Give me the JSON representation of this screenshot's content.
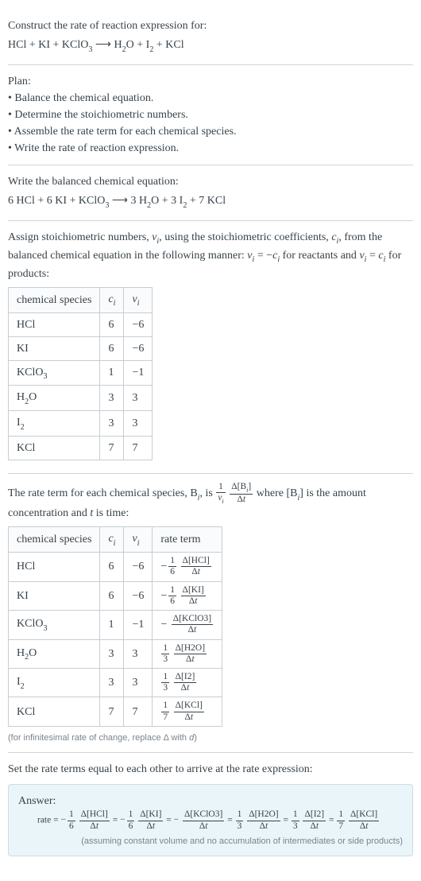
{
  "sec1": {
    "title": "Construct the rate of reaction expression for:",
    "eqn": "HCl + KI + KClO<sub class='sub'>3</sub>&nbsp;<span class='arrow'>⟶</span>&nbsp;H<sub class='sub'>2</sub>O + I<sub class='sub'>2</sub> + KCl"
  },
  "sec2": {
    "title": "Plan:",
    "bullets": [
      "Balance the chemical equation.",
      "Determine the stoichiometric numbers.",
      "Assemble the rate term for each chemical species.",
      "Write the rate of reaction expression."
    ]
  },
  "sec3": {
    "title": "Write the balanced chemical equation:",
    "eqn": "6 HCl + 6 KI + KClO<sub class='sub'>3</sub>&nbsp;<span class='arrow'>⟶</span>&nbsp;3 H<sub class='sub'>2</sub>O + 3 I<sub class='sub'>2</sub> + 7 KCl"
  },
  "sec4": {
    "intro": "Assign stoichiometric numbers, <span class='ital'>ν<sub class='sub'>i</sub></span>, using the stoichiometric coefficients, <span class='ital'>c<sub class='sub'>i</sub></span>, from the balanced chemical equation in the following manner: <span class='ital'>ν<sub class='sub'>i</sub></span> = −<span class='ital'>c<sub class='sub'>i</sub></span> for reactants and <span class='ital'>ν<sub class='sub'>i</sub></span> = <span class='ital'>c<sub class='sub'>i</sub></span> for products:",
    "headers": [
      "chemical species",
      "<span class='ital'>c<sub class='sub'>i</sub></span>",
      "<span class='ital'>ν<sub class='sub'>i</sub></span>"
    ],
    "rows": [
      [
        "HCl",
        "6",
        "−6"
      ],
      [
        "KI",
        "6",
        "−6"
      ],
      [
        "KClO<sub class='sub'>3</sub>",
        "1",
        "−1"
      ],
      [
        "H<sub class='sub'>2</sub>O",
        "3",
        "3"
      ],
      [
        "I<sub class='sub'>2</sub>",
        "3",
        "3"
      ],
      [
        "KCl",
        "7",
        "7"
      ]
    ]
  },
  "sec5": {
    "intro_pre": "The rate term for each chemical species, B<sub class='sub'><span class='ital'>i</span></sub>, is ",
    "intro_post": " where [B<sub class='sub'><span class='ital'>i</span></sub>] is the amount concentration and <span class='ital'>t</span> is time:",
    "headers": [
      "chemical species",
      "<span class='ital'>c<sub class='sub'>i</sub></span>",
      "<span class='ital'>ν<sub class='sub'>i</sub></span>",
      "rate term"
    ],
    "rows": [
      {
        "sp": "HCl",
        "c": "6",
        "v": "−6",
        "neg": true,
        "fnum": "1",
        "fden": "6",
        "dnum": "Δ[HCl]",
        "dden": "Δ<span class='ital'>t</span>"
      },
      {
        "sp": "KI",
        "c": "6",
        "v": "−6",
        "neg": true,
        "fnum": "1",
        "fden": "6",
        "dnum": "Δ[KI]",
        "dden": "Δ<span class='ital'>t</span>"
      },
      {
        "sp": "KClO<sub class='sub'>3</sub>",
        "c": "1",
        "v": "−1",
        "neg": true,
        "fnum": "",
        "fden": "",
        "dnum": "Δ[KClO3]",
        "dden": "Δ<span class='ital'>t</span>"
      },
      {
        "sp": "H<sub class='sub'>2</sub>O",
        "c": "3",
        "v": "3",
        "neg": false,
        "fnum": "1",
        "fden": "3",
        "dnum": "Δ[H2O]",
        "dden": "Δ<span class='ital'>t</span>"
      },
      {
        "sp": "I<sub class='sub'>2</sub>",
        "c": "3",
        "v": "3",
        "neg": false,
        "fnum": "1",
        "fden": "3",
        "dnum": "Δ[I2]",
        "dden": "Δ<span class='ital'>t</span>"
      },
      {
        "sp": "KCl",
        "c": "7",
        "v": "7",
        "neg": false,
        "fnum": "1",
        "fden": "7",
        "dnum": "Δ[KCl]",
        "dden": "Δ<span class='ital'>t</span>"
      }
    ],
    "note": "(for infinitesimal rate of change, replace Δ with <span class='ital'>d</span>)"
  },
  "sec6": {
    "title": "Set the rate terms equal to each other to arrive at the rate expression:",
    "answer_label": "Answer:",
    "rate_word": "rate",
    "terms": [
      {
        "neg": true,
        "fnum": "1",
        "fden": "6",
        "dnum": "Δ[HCl]",
        "dden": "Δ<span class='ital'>t</span>"
      },
      {
        "neg": true,
        "fnum": "1",
        "fden": "6",
        "dnum": "Δ[KI]",
        "dden": "Δ<span class='ital'>t</span>"
      },
      {
        "neg": true,
        "fnum": "",
        "fden": "",
        "dnum": "Δ[KClO3]",
        "dden": "Δ<span class='ital'>t</span>"
      },
      {
        "neg": false,
        "fnum": "1",
        "fden": "3",
        "dnum": "Δ[H2O]",
        "dden": "Δ<span class='ital'>t</span>"
      },
      {
        "neg": false,
        "fnum": "1",
        "fden": "3",
        "dnum": "Δ[I2]",
        "dden": "Δ<span class='ital'>t</span>"
      },
      {
        "neg": false,
        "fnum": "1",
        "fden": "7",
        "dnum": "Δ[KCl]",
        "dden": "Δ<span class='ital'>t</span>"
      }
    ],
    "caveat": "(assuming constant volume and no accumulation of intermediates or side products)"
  },
  "colors": {
    "text": "#37424a",
    "border": "#d0d5d9",
    "table_border": "#c8cdd2",
    "answer_bg": "#eaf5f9",
    "answer_border": "#c7dde6",
    "help": "#7a848c"
  }
}
